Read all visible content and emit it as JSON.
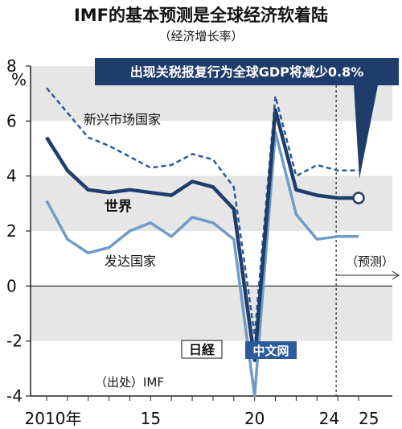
{
  "title": "IMF的基本预测是全球经济软着陆",
  "subtitle": "（经济增长率）",
  "unit": "%",
  "callout": "出现关税报复行为全球GDP将减少0.8%",
  "source": "（出处）IMF",
  "forecast_label": "（预测）",
  "watermark_logo": "日経",
  "watermark_text": "中文网",
  "colors": {
    "world": "#1f3d6b",
    "emerging": "#2c5a9a",
    "advanced": "#6f9bc9",
    "band": "#e6e6e6",
    "callout_bg": "#1f3d6b"
  },
  "chart_data": {
    "type": "line",
    "title": "IMF的基本预测是全球经济软着陆",
    "subtitle": "（经济增长率）",
    "ylabel": "%",
    "ylim": [
      -4,
      8
    ],
    "yticks": [
      "8",
      "6",
      "4",
      "2",
      "0",
      "-2",
      "-4"
    ],
    "xlim": [
      2010,
      2025
    ],
    "xtick_labels": [
      "2010年",
      "15",
      "20",
      "24",
      "25"
    ],
    "x": [
      2010,
      2011,
      2012,
      2013,
      2014,
      2015,
      2016,
      2017,
      2018,
      2019,
      2020,
      2021,
      2022,
      2023,
      2024,
      2025
    ],
    "forecast_start": 2024,
    "series": [
      {
        "name": "新兴市场国家",
        "style": "dashed",
        "values": [
          7.2,
          6.3,
          5.4,
          5.1,
          4.7,
          4.3,
          4.4,
          4.8,
          4.6,
          3.6,
          -1.8,
          6.9,
          4.0,
          4.4,
          4.2,
          4.2
        ]
      },
      {
        "name": "世界",
        "style": "solid-bold",
        "values": [
          5.4,
          4.2,
          3.5,
          3.4,
          3.5,
          3.4,
          3.3,
          3.8,
          3.6,
          2.8,
          -2.7,
          6.4,
          3.5,
          3.3,
          3.2,
          3.2
        ]
      },
      {
        "name": "发达国家",
        "style": "solid",
        "values": [
          3.1,
          1.7,
          1.2,
          1.4,
          2.0,
          2.3,
          1.8,
          2.5,
          2.3,
          1.7,
          -4.0,
          5.6,
          2.6,
          1.7,
          1.8,
          1.8
        ]
      }
    ]
  }
}
